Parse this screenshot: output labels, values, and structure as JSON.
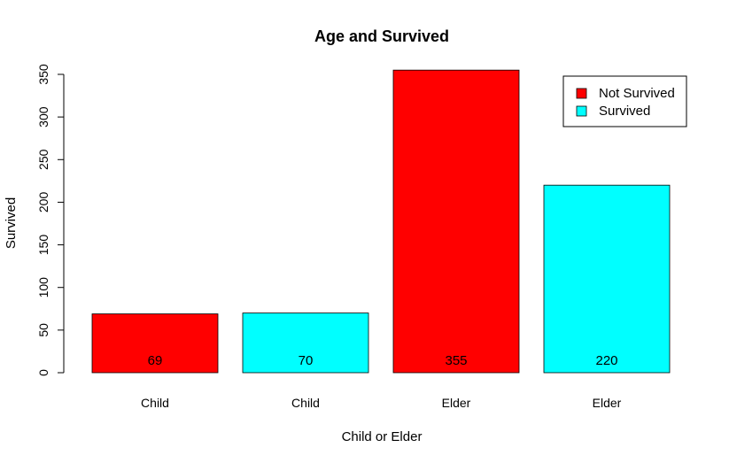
{
  "chart_data": {
    "type": "bar",
    "title": "Age and Survived",
    "xlabel": "Child or Elder",
    "ylabel": "Survived",
    "categories": [
      "Child",
      "Child",
      "Elder",
      "Elder"
    ],
    "values": [
      69,
      70,
      355,
      220
    ],
    "data_labels": [
      "69",
      "70",
      "355",
      "220"
    ],
    "bar_series": [
      "Not Survived",
      "Survived",
      "Not Survived",
      "Survived"
    ],
    "series": [
      {
        "name": "Not Survived",
        "color": "#ff0000"
      },
      {
        "name": "Survived",
        "color": "#00ffff"
      }
    ],
    "ylim": [
      0,
      350
    ],
    "yticks": [
      0,
      50,
      100,
      150,
      200,
      250,
      300,
      350
    ],
    "grid": false,
    "legend_position": "top-right"
  }
}
